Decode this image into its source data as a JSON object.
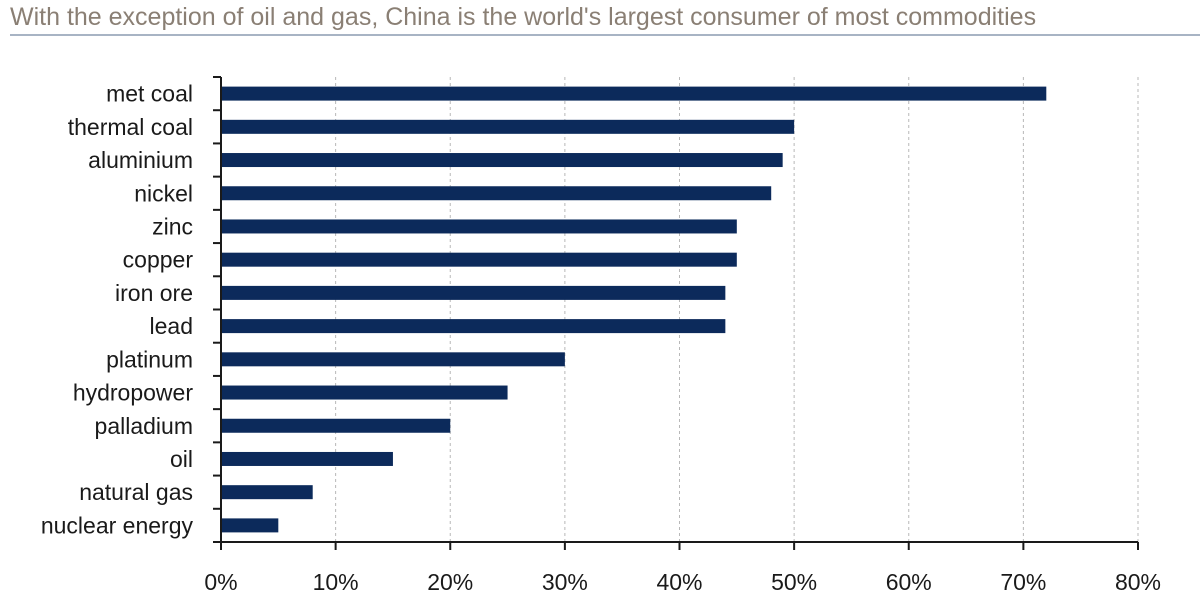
{
  "chart_data": {
    "type": "bar",
    "orientation": "horizontal",
    "title": "With the exception of oil and gas, China is the world's largest consumer of most commodities",
    "categories": [
      "met coal",
      "thermal coal",
      "aluminium",
      "nickel",
      "zinc",
      "copper",
      "iron ore",
      "lead",
      "platinum",
      "hydropower",
      "palladium",
      "oil",
      "natural gas",
      "nuclear energy"
    ],
    "values": [
      72,
      50,
      49,
      48,
      45,
      45,
      44,
      44,
      30,
      25,
      20,
      15,
      8,
      5
    ],
    "value_unit": "%",
    "xlim": [
      0,
      80
    ],
    "xticks": [
      0,
      10,
      20,
      30,
      40,
      50,
      60,
      70,
      80
    ],
    "xtick_labels": [
      "0%",
      "10%",
      "20%",
      "30%",
      "40%",
      "50%",
      "60%",
      "70%",
      "80%"
    ],
    "xlabel": "",
    "ylabel": "",
    "grid": "vertical dashed",
    "bar_color": "#0c2a5b"
  }
}
